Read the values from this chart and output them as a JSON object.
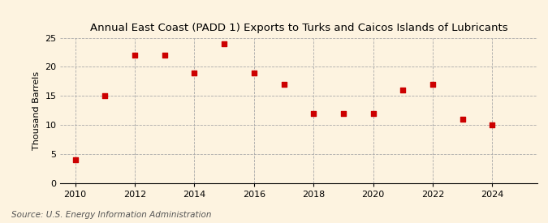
{
  "title": "Annual East Coast (PADD 1) Exports to Turks and Caicos Islands of Lubricants",
  "ylabel": "Thousand Barrels",
  "source": "Source: U.S. Energy Information Administration",
  "years": [
    2010,
    2011,
    2012,
    2013,
    2014,
    2015,
    2016,
    2017,
    2018,
    2019,
    2020,
    2021,
    2022,
    2023,
    2024
  ],
  "values": [
    4,
    15,
    22,
    22,
    19,
    24,
    19,
    17,
    12,
    12,
    12,
    16,
    17,
    11,
    10
  ],
  "marker_color": "#cc0000",
  "marker": "s",
  "marker_size": 4,
  "xlim": [
    2009.5,
    2025.5
  ],
  "ylim": [
    0,
    25
  ],
  "yticks": [
    0,
    5,
    10,
    15,
    20,
    25
  ],
  "xticks": [
    2010,
    2012,
    2014,
    2016,
    2018,
    2020,
    2022,
    2024
  ],
  "background_color": "#fdf3e0",
  "plot_bg_color": "#fdf3e0",
  "grid_color": "#aaaaaa",
  "title_fontsize": 9.5,
  "label_fontsize": 8,
  "tick_fontsize": 8,
  "source_fontsize": 7.5
}
